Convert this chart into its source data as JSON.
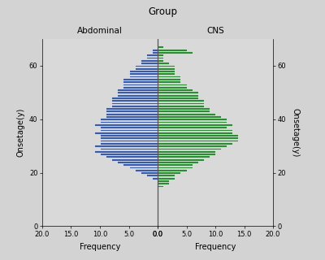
{
  "title": "Group",
  "left_label": "Abdominal",
  "right_label": "CNS",
  "ylabel_left": "Onsetage(y)",
  "ylabel_right": "Onsetage(y)",
  "xlabel_left": "Frequency",
  "xlabel_right": "Frequency",
  "fig_bg": "#d3d3d3",
  "ax_bg": "#d9d9d9",
  "bar_color_left": "#3a5ca8",
  "bar_color_right": "#2e8b35",
  "ylim_min": 0,
  "ylim_max": 70,
  "xlim_max": 20,
  "yticks": [
    0,
    20,
    40,
    60
  ],
  "xticks": [
    0,
    5.0,
    10.0,
    15.0,
    20.0
  ],
  "ages": [
    3,
    4,
    5,
    6,
    7,
    8,
    9,
    10,
    11,
    12,
    13,
    14,
    15,
    16,
    17,
    18,
    19,
    20,
    21,
    22,
    23,
    24,
    25,
    26,
    27,
    28,
    29,
    30,
    31,
    32,
    33,
    34,
    35,
    36,
    37,
    38,
    39,
    40,
    41,
    42,
    43,
    44,
    45,
    46,
    47,
    48,
    49,
    50,
    51,
    52,
    53,
    54,
    55,
    56,
    57,
    58,
    59,
    60,
    61,
    62,
    63,
    64,
    65,
    66,
    67,
    68
  ],
  "abdominal": [
    0,
    0,
    0,
    0,
    0,
    0,
    0,
    0,
    0,
    0,
    0,
    0,
    0,
    0,
    0,
    1,
    2,
    3,
    4,
    5,
    6,
    7,
    8,
    9,
    10,
    11,
    10,
    11,
    10,
    10,
    10,
    10,
    11,
    10,
    10,
    11,
    10,
    10,
    9,
    9,
    9,
    9,
    8,
    8,
    8,
    8,
    7,
    7,
    7,
    6,
    6,
    6,
    6,
    5,
    5,
    5,
    4,
    4,
    3,
    3,
    2,
    2,
    1,
    1,
    0,
    0
  ],
  "cns": [
    0,
    0,
    0,
    0,
    0,
    0,
    0,
    0,
    0,
    0,
    0,
    0,
    1,
    2,
    2,
    3,
    3,
    4,
    5,
    6,
    6,
    7,
    8,
    9,
    10,
    10,
    11,
    12,
    13,
    14,
    14,
    14,
    13,
    13,
    12,
    13,
    12,
    12,
    11,
    10,
    9,
    9,
    8,
    8,
    8,
    7,
    7,
    7,
    6,
    5,
    5,
    4,
    4,
    4,
    3,
    3,
    3,
    3,
    2,
    1,
    1,
    1,
    6,
    5,
    1,
    0
  ],
  "bar_height": 0.85
}
